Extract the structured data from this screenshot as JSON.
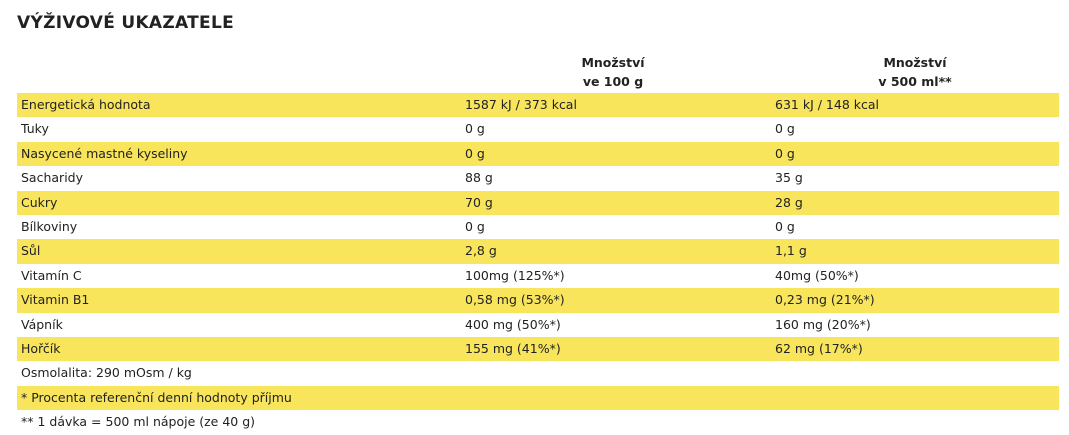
{
  "header": {
    "title": "VÝŽIVOVÉ UKAZATELE"
  },
  "table": {
    "headers": [
      [
        "Množství",
        "ve 100 g"
      ],
      [
        "Množství",
        "v 500 ml**"
      ]
    ],
    "rows": [
      [
        "Energetická hodnota",
        "1587 kJ / 373 kcal",
        "631 kJ / 148 kcal"
      ],
      [
        "Tuky",
        "0 g",
        "0 g"
      ],
      [
        "Nasycené mastné kyseliny",
        "0 g",
        "0 g"
      ],
      [
        "Sacharidy",
        "88 g",
        "35 g"
      ],
      [
        "Cukry",
        "70 g",
        "28 g"
      ],
      [
        "Bílkoviny",
        "0 g",
        "0 g"
      ],
      [
        "Sůl",
        "2,8 g",
        "1,1 g"
      ],
      [
        "Vitamín C",
        "100mg (125%*)",
        "40mg (50%*)"
      ],
      [
        "Vitamin B1",
        "0,58 mg (53%*)",
        "0,23 mg (21%*)"
      ],
      [
        "Vápník",
        "400 mg (50%*)",
        "160 mg (20%*)"
      ],
      [
        "Hořčík",
        "155 mg (41%*)",
        "62 mg (17%*)"
      ]
    ],
    "notes": [
      "Osmolalita: 290 mOsm / kg",
      "* Procenta referenční denní hodnoty příjmu",
      "** 1 dávka = 500 ml nápoje (ze 40 g)"
    ]
  }
}
